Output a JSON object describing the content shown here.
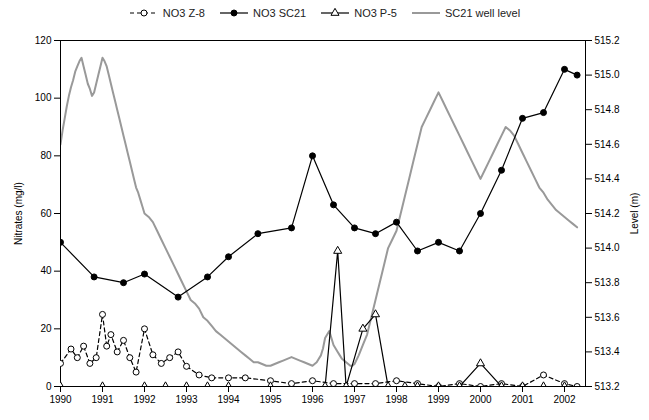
{
  "chart_data": {
    "type": "line",
    "ylabel": "Nitrates (mg/l)",
    "y2label": "Level (m)",
    "xlim": [
      1990,
      2002.5
    ],
    "xticks": [
      1990,
      1991,
      1992,
      1993,
      1994,
      1995,
      1996,
      1997,
      1998,
      1999,
      2000,
      2001,
      2002
    ],
    "ylim": [
      0,
      120
    ],
    "yticks": [
      0,
      20,
      40,
      60,
      80,
      100,
      120
    ],
    "y2lim": [
      513.2,
      515.2
    ],
    "y2ticks": [
      513.2,
      513.4,
      513.6,
      513.8,
      {
        "value": 514,
        "label": "514.0"
      },
      514.2,
      514.4,
      514.6,
      514.8,
      {
        "value": 515,
        "label": "515.0"
      },
      515.2
    ],
    "grid": false,
    "legend": "top",
    "series": [
      {
        "name": "NO3 Z-8",
        "color": "#000000",
        "line_style": "dashed",
        "marker": "open circle",
        "x": [
          1990.0,
          1990.25,
          1990.4,
          1990.55,
          1990.7,
          1990.85,
          1991.0,
          1991.1,
          1991.2,
          1991.35,
          1991.5,
          1991.65,
          1991.8,
          1992.0,
          1992.2,
          1992.4,
          1992.6,
          1992.8,
          1993.0,
          1993.3,
          1993.6,
          1994.0,
          1994.4,
          1995.0,
          1995.5,
          1996.0,
          1996.5,
          1997.0,
          1997.5,
          1998.0,
          1998.5,
          1999.0,
          1999.5,
          2000.0,
          2000.5,
          2001.0,
          2001.5,
          2002.0,
          2002.3
        ],
        "values": [
          8,
          13,
          10,
          14,
          8,
          10,
          25,
          14,
          18,
          12,
          16,
          10,
          5,
          20,
          11,
          8,
          10,
          12,
          7,
          4,
          3,
          3,
          3,
          2,
          1,
          2,
          1,
          1,
          1,
          2,
          1,
          0,
          1,
          0,
          1,
          0,
          4,
          1,
          0
        ]
      },
      {
        "name": "NO3 SC21",
        "color": "#000000",
        "line_style": "solid",
        "marker": "filled circle",
        "x": [
          1990.0,
          1990.8,
          1991.5,
          1992.0,
          1992.8,
          1993.5,
          1994.0,
          1994.7,
          1995.5,
          1996.0,
          1996.5,
          1997.0,
          1997.5,
          1998.0,
          1998.5,
          1999.0,
          1999.5,
          2000.0,
          2000.5,
          2001.0,
          2001.5,
          2002.0,
          2002.3
        ],
        "values": [
          50,
          38,
          36,
          39,
          31,
          38,
          45,
          53,
          55,
          80,
          63,
          55,
          53,
          57,
          47,
          50,
          47,
          60,
          75,
          93,
          95,
          110,
          108
        ]
      },
      {
        "name": "NO3 P-5",
        "color": "#000000",
        "line_style": "solid",
        "marker": "open triangle",
        "x": [
          1990.0,
          1991.0,
          1992.0,
          1992.5,
          1993.0,
          1993.5,
          1994.0,
          1995.0,
          1996.3,
          1996.6,
          1996.8,
          1997.2,
          1997.5,
          1997.8,
          1998.2,
          1998.5,
          1999.0,
          1999.5,
          2000.0,
          2000.5,
          2001.0,
          2001.5,
          2002.0
        ],
        "values": [
          0,
          0,
          0,
          0,
          0,
          0,
          0,
          0,
          0,
          47,
          0,
          20,
          25,
          0,
          0,
          0,
          0,
          0,
          8,
          0,
          0,
          0,
          0
        ]
      },
      {
        "name": "SC21 well level",
        "color": "#999999",
        "line_style": "solid",
        "axis": "y2",
        "x": [
          1990.0,
          1990.05,
          1990.1,
          1990.15,
          1990.2,
          1990.25,
          1990.3,
          1990.35,
          1990.4,
          1990.45,
          1990.5,
          1990.55,
          1990.6,
          1990.65,
          1990.7,
          1990.75,
          1990.8,
          1990.85,
          1990.9,
          1990.95,
          1991.0,
          1991.05,
          1991.1,
          1991.15,
          1991.2,
          1991.25,
          1991.3,
          1991.35,
          1991.4,
          1991.45,
          1991.5,
          1991.55,
          1991.6,
          1991.65,
          1991.7,
          1991.75,
          1991.8,
          1991.85,
          1991.9,
          1991.95,
          1992.0,
          1992.1,
          1992.2,
          1992.3,
          1992.4,
          1992.5,
          1992.6,
          1992.7,
          1992.8,
          1992.9,
          1993.0,
          1993.1,
          1993.2,
          1993.3,
          1993.4,
          1993.5,
          1993.6,
          1993.7,
          1993.8,
          1993.9,
          1994.0,
          1994.1,
          1994.2,
          1994.3,
          1994.4,
          1994.5,
          1994.6,
          1994.7,
          1994.8,
          1994.9,
          1995.0,
          1995.1,
          1995.2,
          1995.3,
          1995.4,
          1995.5,
          1995.6,
          1995.7,
          1995.8,
          1995.9,
          1996.0,
          1996.05,
          1996.1,
          1996.15,
          1996.2,
          1996.25,
          1996.3,
          1996.35,
          1996.4,
          1996.45,
          1996.5,
          1996.55,
          1996.6,
          1996.65,
          1996.7,
          1996.75,
          1996.8,
          1996.85,
          1996.9,
          1996.95,
          1997.0,
          1997.1,
          1997.2,
          1997.3,
          1997.4,
          1997.5,
          1997.6,
          1997.7,
          1997.8,
          1997.9,
          1998.0,
          1998.1,
          1998.2,
          1998.3,
          1998.4,
          1998.5,
          1998.6,
          1998.7,
          1998.8,
          1998.9,
          1999.0,
          1999.1,
          1999.2,
          1999.3,
          1999.4,
          1999.5,
          1999.6,
          1999.7,
          1999.8,
          1999.9,
          2000.0,
          2000.1,
          2000.2,
          2000.3,
          2000.4,
          2000.5,
          2000.6,
          2000.7,
          2000.8,
          2000.9,
          2001.0,
          2001.1,
          2001.2,
          2001.3,
          2001.4,
          2001.5,
          2001.6,
          2001.7,
          2001.8,
          2001.9,
          2002.0,
          2002.1,
          2002.2,
          2002.3
        ],
        "values": [
          514.6,
          514.68,
          514.75,
          514.82,
          514.88,
          514.93,
          514.97,
          515.02,
          515.05,
          515.08,
          515.1,
          515.05,
          515.0,
          514.95,
          514.92,
          514.88,
          514.9,
          514.95,
          515.0,
          515.05,
          515.1,
          515.08,
          515.05,
          515.0,
          514.95,
          514.9,
          514.85,
          514.8,
          514.75,
          514.7,
          514.65,
          514.6,
          514.55,
          514.5,
          514.45,
          514.4,
          514.35,
          514.32,
          514.28,
          514.24,
          514.2,
          514.18,
          514.15,
          514.1,
          514.05,
          514.0,
          513.95,
          513.9,
          513.85,
          513.8,
          513.75,
          513.7,
          513.68,
          513.65,
          513.6,
          513.58,
          513.55,
          513.52,
          513.5,
          513.48,
          513.46,
          513.44,
          513.42,
          513.4,
          513.38,
          513.36,
          513.34,
          513.34,
          513.33,
          513.32,
          513.32,
          513.33,
          513.34,
          513.35,
          513.36,
          513.37,
          513.36,
          513.35,
          513.34,
          513.33,
          513.32,
          513.33,
          513.34,
          513.36,
          513.38,
          513.42,
          513.48,
          513.5,
          513.52,
          513.48,
          513.44,
          513.42,
          513.4,
          513.38,
          513.36,
          513.35,
          513.34,
          513.33,
          513.32,
          513.32,
          513.33,
          513.38,
          513.44,
          513.5,
          513.6,
          513.7,
          513.8,
          513.9,
          514.0,
          514.05,
          514.1,
          514.2,
          514.3,
          514.4,
          514.5,
          514.6,
          514.7,
          514.75,
          514.8,
          514.85,
          514.9,
          514.85,
          514.8,
          514.75,
          514.7,
          514.65,
          514.6,
          514.55,
          514.5,
          514.45,
          514.4,
          514.45,
          514.5,
          514.55,
          514.6,
          514.65,
          514.7,
          514.68,
          514.65,
          514.6,
          514.55,
          514.5,
          514.45,
          514.4,
          514.35,
          514.32,
          514.28,
          514.25,
          514.22,
          514.2,
          514.18,
          514.16,
          514.14,
          514.12
        ]
      }
    ]
  }
}
